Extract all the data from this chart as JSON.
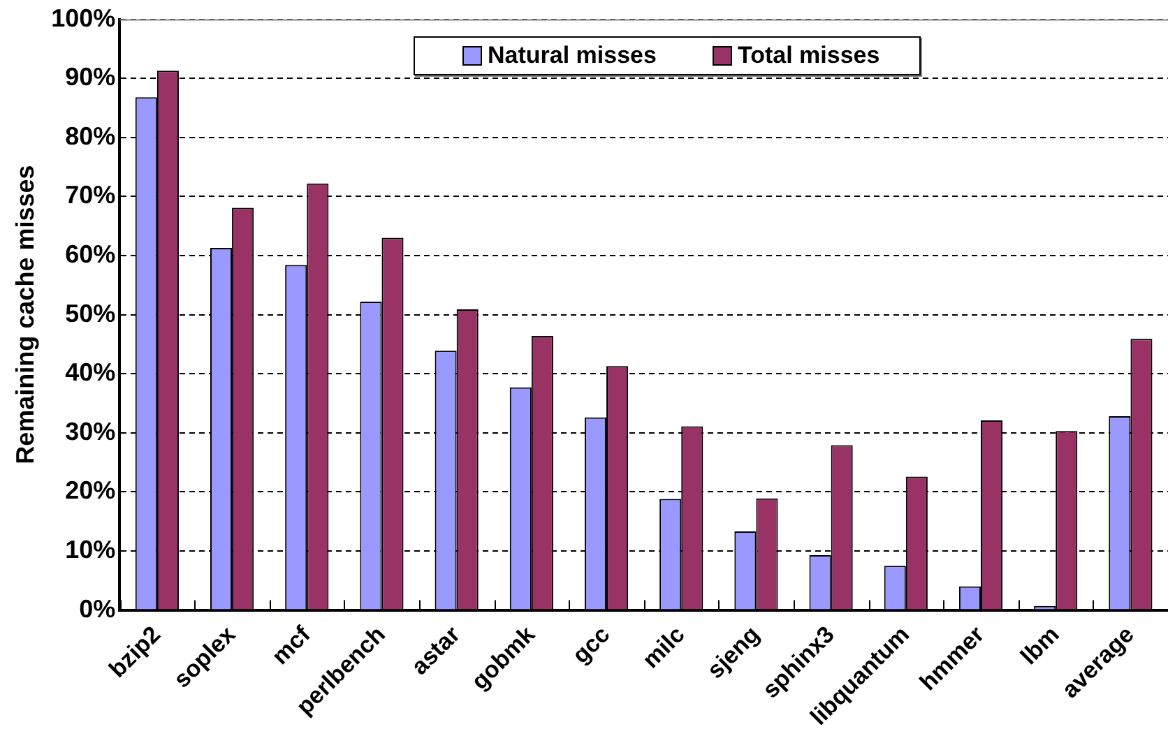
{
  "chart_data": {
    "type": "bar",
    "ylabel": "Remaining cache misses",
    "categories": [
      "bzip2",
      "soplex",
      "mcf",
      "perlbench",
      "astar",
      "gobmk",
      "gcc",
      "milc",
      "sjeng",
      "sphinx3",
      "libquantum",
      "hmmer",
      "lbm",
      "average"
    ],
    "series": [
      {
        "name": "Natural misses",
        "color": "#9999ff",
        "values": [
          86.8,
          61.3,
          58.4,
          52.2,
          43.9,
          37.7,
          32.6,
          18.8,
          13.3,
          9.3,
          7.5,
          4.0,
          0.7,
          32.8
        ]
      },
      {
        "name": "Total misses",
        "color": "#993366",
        "values": [
          91.3,
          68.1,
          72.2,
          63.0,
          50.9,
          46.4,
          41.3,
          31.1,
          18.9,
          27.9,
          22.6,
          32.1,
          30.3,
          45.9
        ]
      }
    ],
    "ylim": [
      0,
      100
    ],
    "yticks": [
      {
        "value": 0,
        "label": "0%"
      },
      {
        "value": 10,
        "label": "10%"
      },
      {
        "value": 20,
        "label": "20%"
      },
      {
        "value": 30,
        "label": "30%"
      },
      {
        "value": 40,
        "label": "40%"
      },
      {
        "value": 50,
        "label": "50%"
      },
      {
        "value": 60,
        "label": "60%"
      },
      {
        "value": 70,
        "label": "70%"
      },
      {
        "value": 80,
        "label": "80%"
      },
      {
        "value": 90,
        "label": "90%"
      },
      {
        "value": 100,
        "label": "100%"
      }
    ],
    "grid": "y",
    "legend": "top"
  }
}
